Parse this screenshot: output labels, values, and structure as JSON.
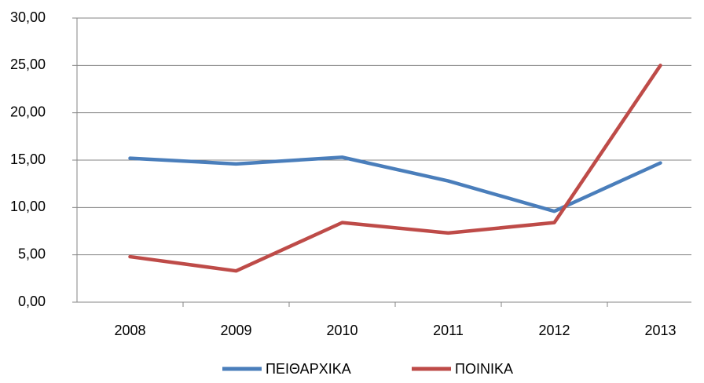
{
  "chart_data": {
    "type": "line",
    "categories": [
      "2008",
      "2009",
      "2010",
      "2011",
      "2012",
      "2013"
    ],
    "series": [
      {
        "name": "ΠΕΙΘΑΡΧΙΚΑ",
        "color": "#4a7ebb",
        "values": [
          15.2,
          14.6,
          15.3,
          12.8,
          9.6,
          14.7
        ]
      },
      {
        "name": "ΠΟΙΝΙΚΑ",
        "color": "#be4b48",
        "values": [
          4.8,
          3.3,
          8.4,
          7.3,
          8.4,
          25.0
        ]
      }
    ],
    "ylim": [
      0,
      30
    ],
    "yticks": [
      {
        "value": 0,
        "label": "0,00"
      },
      {
        "value": 5,
        "label": "5,00"
      },
      {
        "value": 10,
        "label": "10,00"
      },
      {
        "value": 15,
        "label": "15,00"
      },
      {
        "value": 20,
        "label": "20,00"
      },
      {
        "value": 25,
        "label": "25,00"
      },
      {
        "value": 30,
        "label": "30,00"
      }
    ],
    "grid": true,
    "legend": "bottom"
  }
}
